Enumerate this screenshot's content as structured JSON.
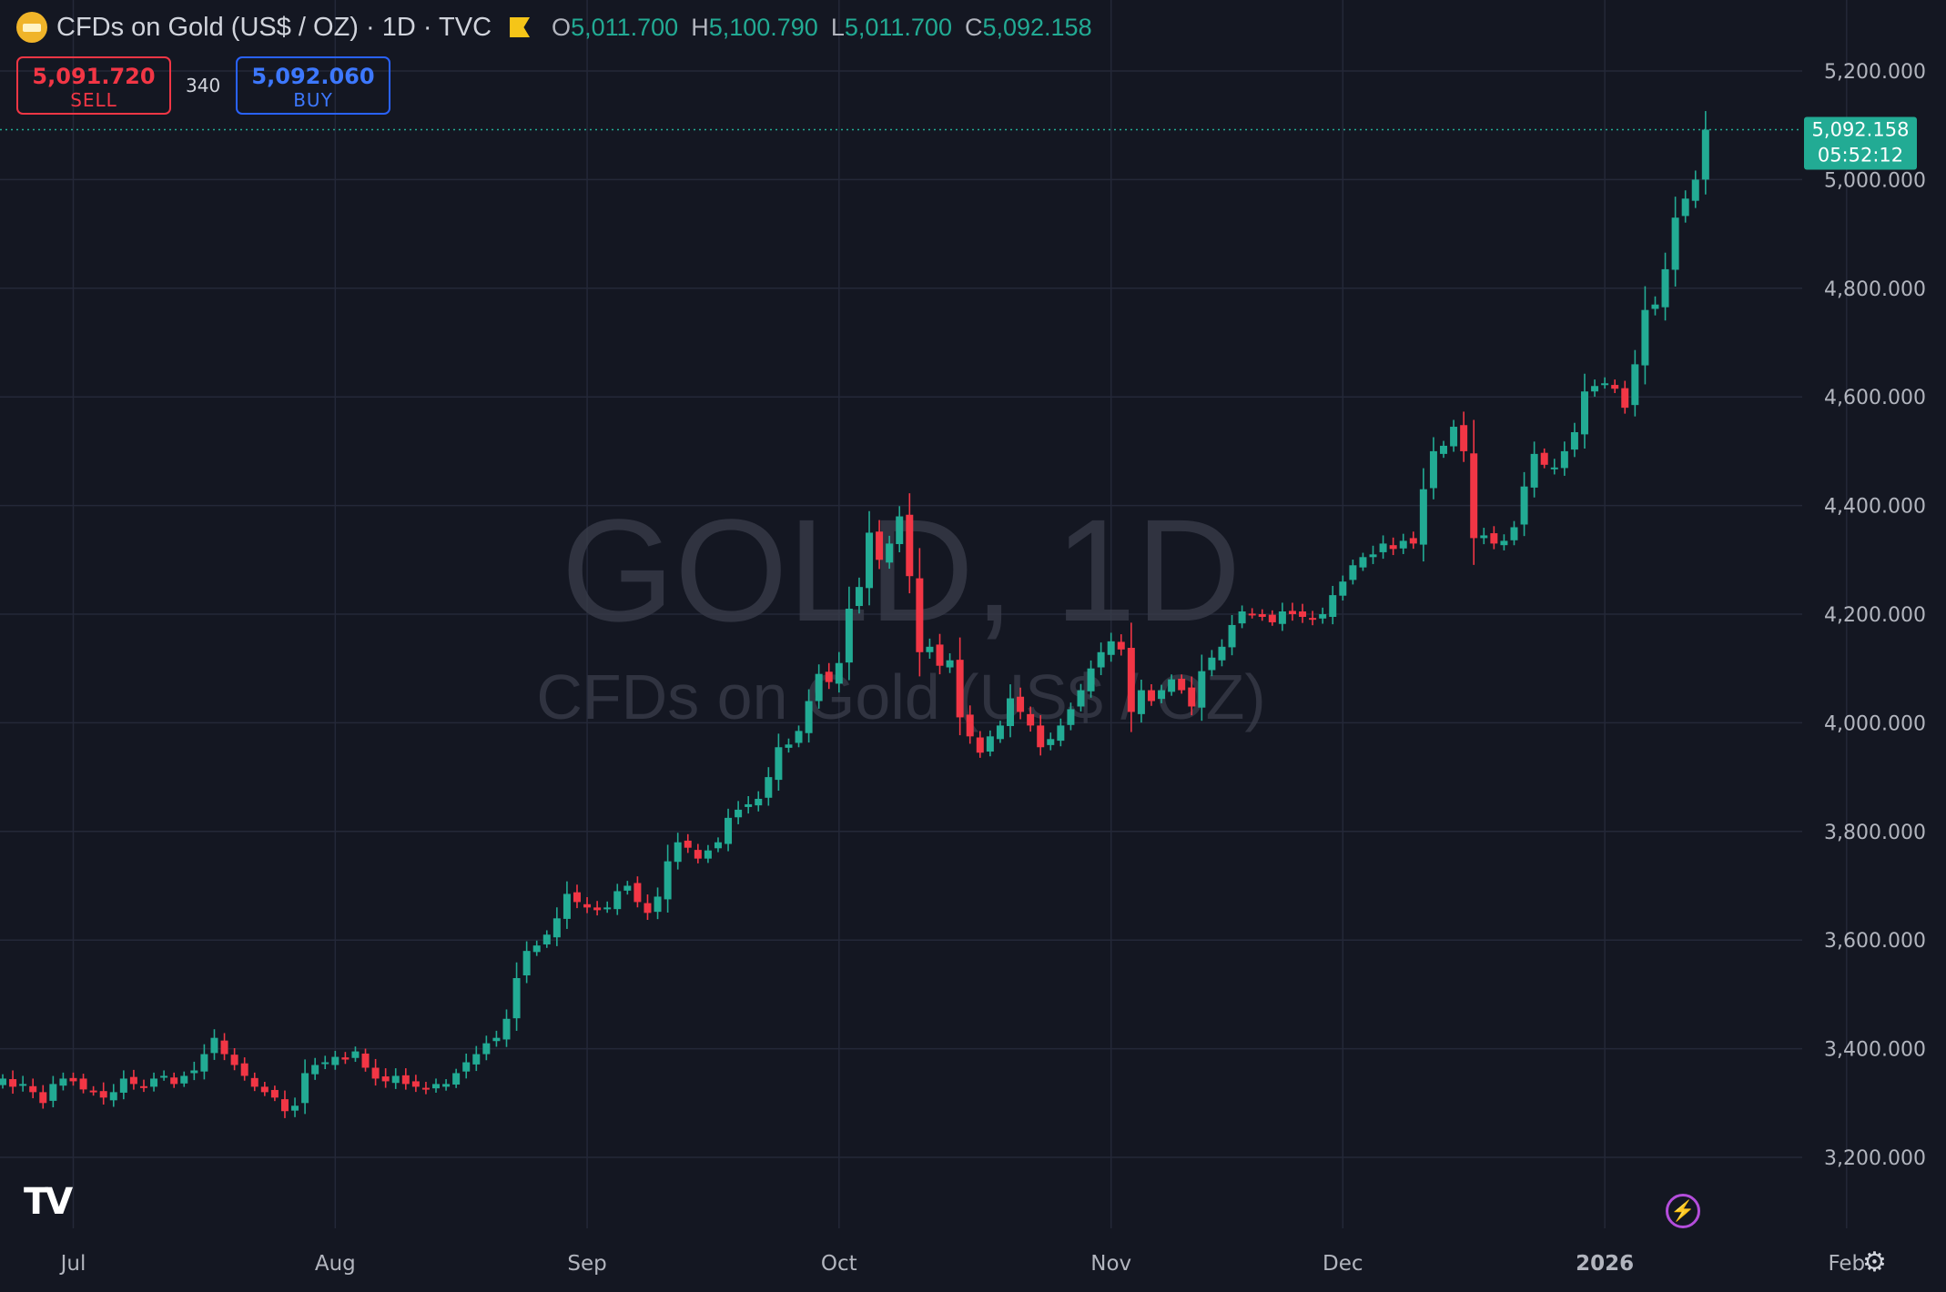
{
  "header": {
    "symbol_title": "CFDs on Gold (US$ / OZ) · 1D · TVC",
    "ohlc": [
      {
        "key": "O",
        "value": "5,011.700"
      },
      {
        "key": "H",
        "value": "5,100.790"
      },
      {
        "key": "L",
        "value": "5,011.700"
      },
      {
        "key": "C",
        "value": "5,092.158"
      }
    ]
  },
  "trade": {
    "sell_price": "5,091.720",
    "sell_label": "SELL",
    "spread": "340",
    "buy_price": "5,092.060",
    "buy_label": "BUY"
  },
  "watermark": {
    "title": "GOLD, 1D",
    "subtitle": "CFDs on Gold (US$ / OZ)"
  },
  "last_price": {
    "price": "5,092.158",
    "countdown": "05:52:12"
  },
  "colors": {
    "background": "#141722",
    "up": "#22ab94",
    "down": "#f23645",
    "grid": "#242838"
  },
  "chart_data": {
    "type": "candlestick",
    "ylim": [
      3100,
      5240
    ],
    "y_ticks": [
      "3,200.000",
      "3,400.000",
      "3,600.000",
      "3,800.000",
      "4,000.000",
      "4,200.000",
      "4,400.000",
      "4,600.000",
      "4,800.000",
      "5,000.000",
      "5,200.000"
    ],
    "y_tick_values": [
      3200,
      3400,
      3600,
      3800,
      4000,
      4200,
      4400,
      4600,
      4800,
      5000,
      5200
    ],
    "x_ticks": [
      {
        "label": "Jul",
        "index": 7,
        "bold": false
      },
      {
        "label": "Aug",
        "index": 33,
        "bold": false
      },
      {
        "label": "Sep",
        "index": 58,
        "bold": false
      },
      {
        "label": "Oct",
        "index": 83,
        "bold": false
      },
      {
        "label": "Nov",
        "index": 110,
        "bold": false
      },
      {
        "label": "Dec",
        "index": 133,
        "bold": false
      },
      {
        "label": "2026",
        "index": 159,
        "bold": true
      },
      {
        "label": "Feb",
        "index": 183,
        "bold": false
      }
    ],
    "closes": [
      3345,
      3330,
      3335,
      3320,
      3300,
      3335,
      3345,
      3340,
      3325,
      3320,
      3310,
      3320,
      3345,
      3335,
      3330,
      3345,
      3350,
      3335,
      3350,
      3360,
      3390,
      3420,
      3390,
      3370,
      3350,
      3330,
      3320,
      3310,
      3285,
      3295,
      3355,
      3370,
      3375,
      3385,
      3380,
      3395,
      3365,
      3345,
      3340,
      3350,
      3335,
      3330,
      3325,
      3335,
      3335,
      3355,
      3375,
      3390,
      3410,
      3420,
      3455,
      3530,
      3580,
      3590,
      3610,
      3640,
      3685,
      3670,
      3660,
      3655,
      3660,
      3690,
      3700,
      3670,
      3650,
      3680,
      3745,
      3780,
      3770,
      3750,
      3765,
      3780,
      3825,
      3840,
      3850,
      3860,
      3900,
      3955,
      3960,
      3985,
      4040,
      4090,
      4075,
      4110,
      4210,
      4250,
      4350,
      4300,
      4330,
      4380,
      4270,
      4130,
      4140,
      4105,
      4115,
      4010,
      3975,
      3945,
      3975,
      3995,
      4045,
      4020,
      3995,
      3955,
      3970,
      3995,
      4025,
      4060,
      4100,
      4130,
      4150,
      4135,
      4020,
      4060,
      4040,
      4060,
      4080,
      4060,
      4030,
      4095,
      4120,
      4140,
      4180,
      4205,
      4200,
      4195,
      4185,
      4205,
      4200,
      4195,
      4190,
      4200,
      4235,
      4260,
      4290,
      4305,
      4310,
      4330,
      4320,
      4335,
      4330,
      4430,
      4500,
      4510,
      4545,
      4500,
      4340,
      4345,
      4330,
      4335,
      4360,
      4435,
      4495,
      4475,
      4470,
      4500,
      4535,
      4610,
      4620,
      4625,
      4615,
      4580,
      4660,
      4760,
      4770,
      4835,
      4930,
      4965,
      5000,
      5092
    ]
  }
}
